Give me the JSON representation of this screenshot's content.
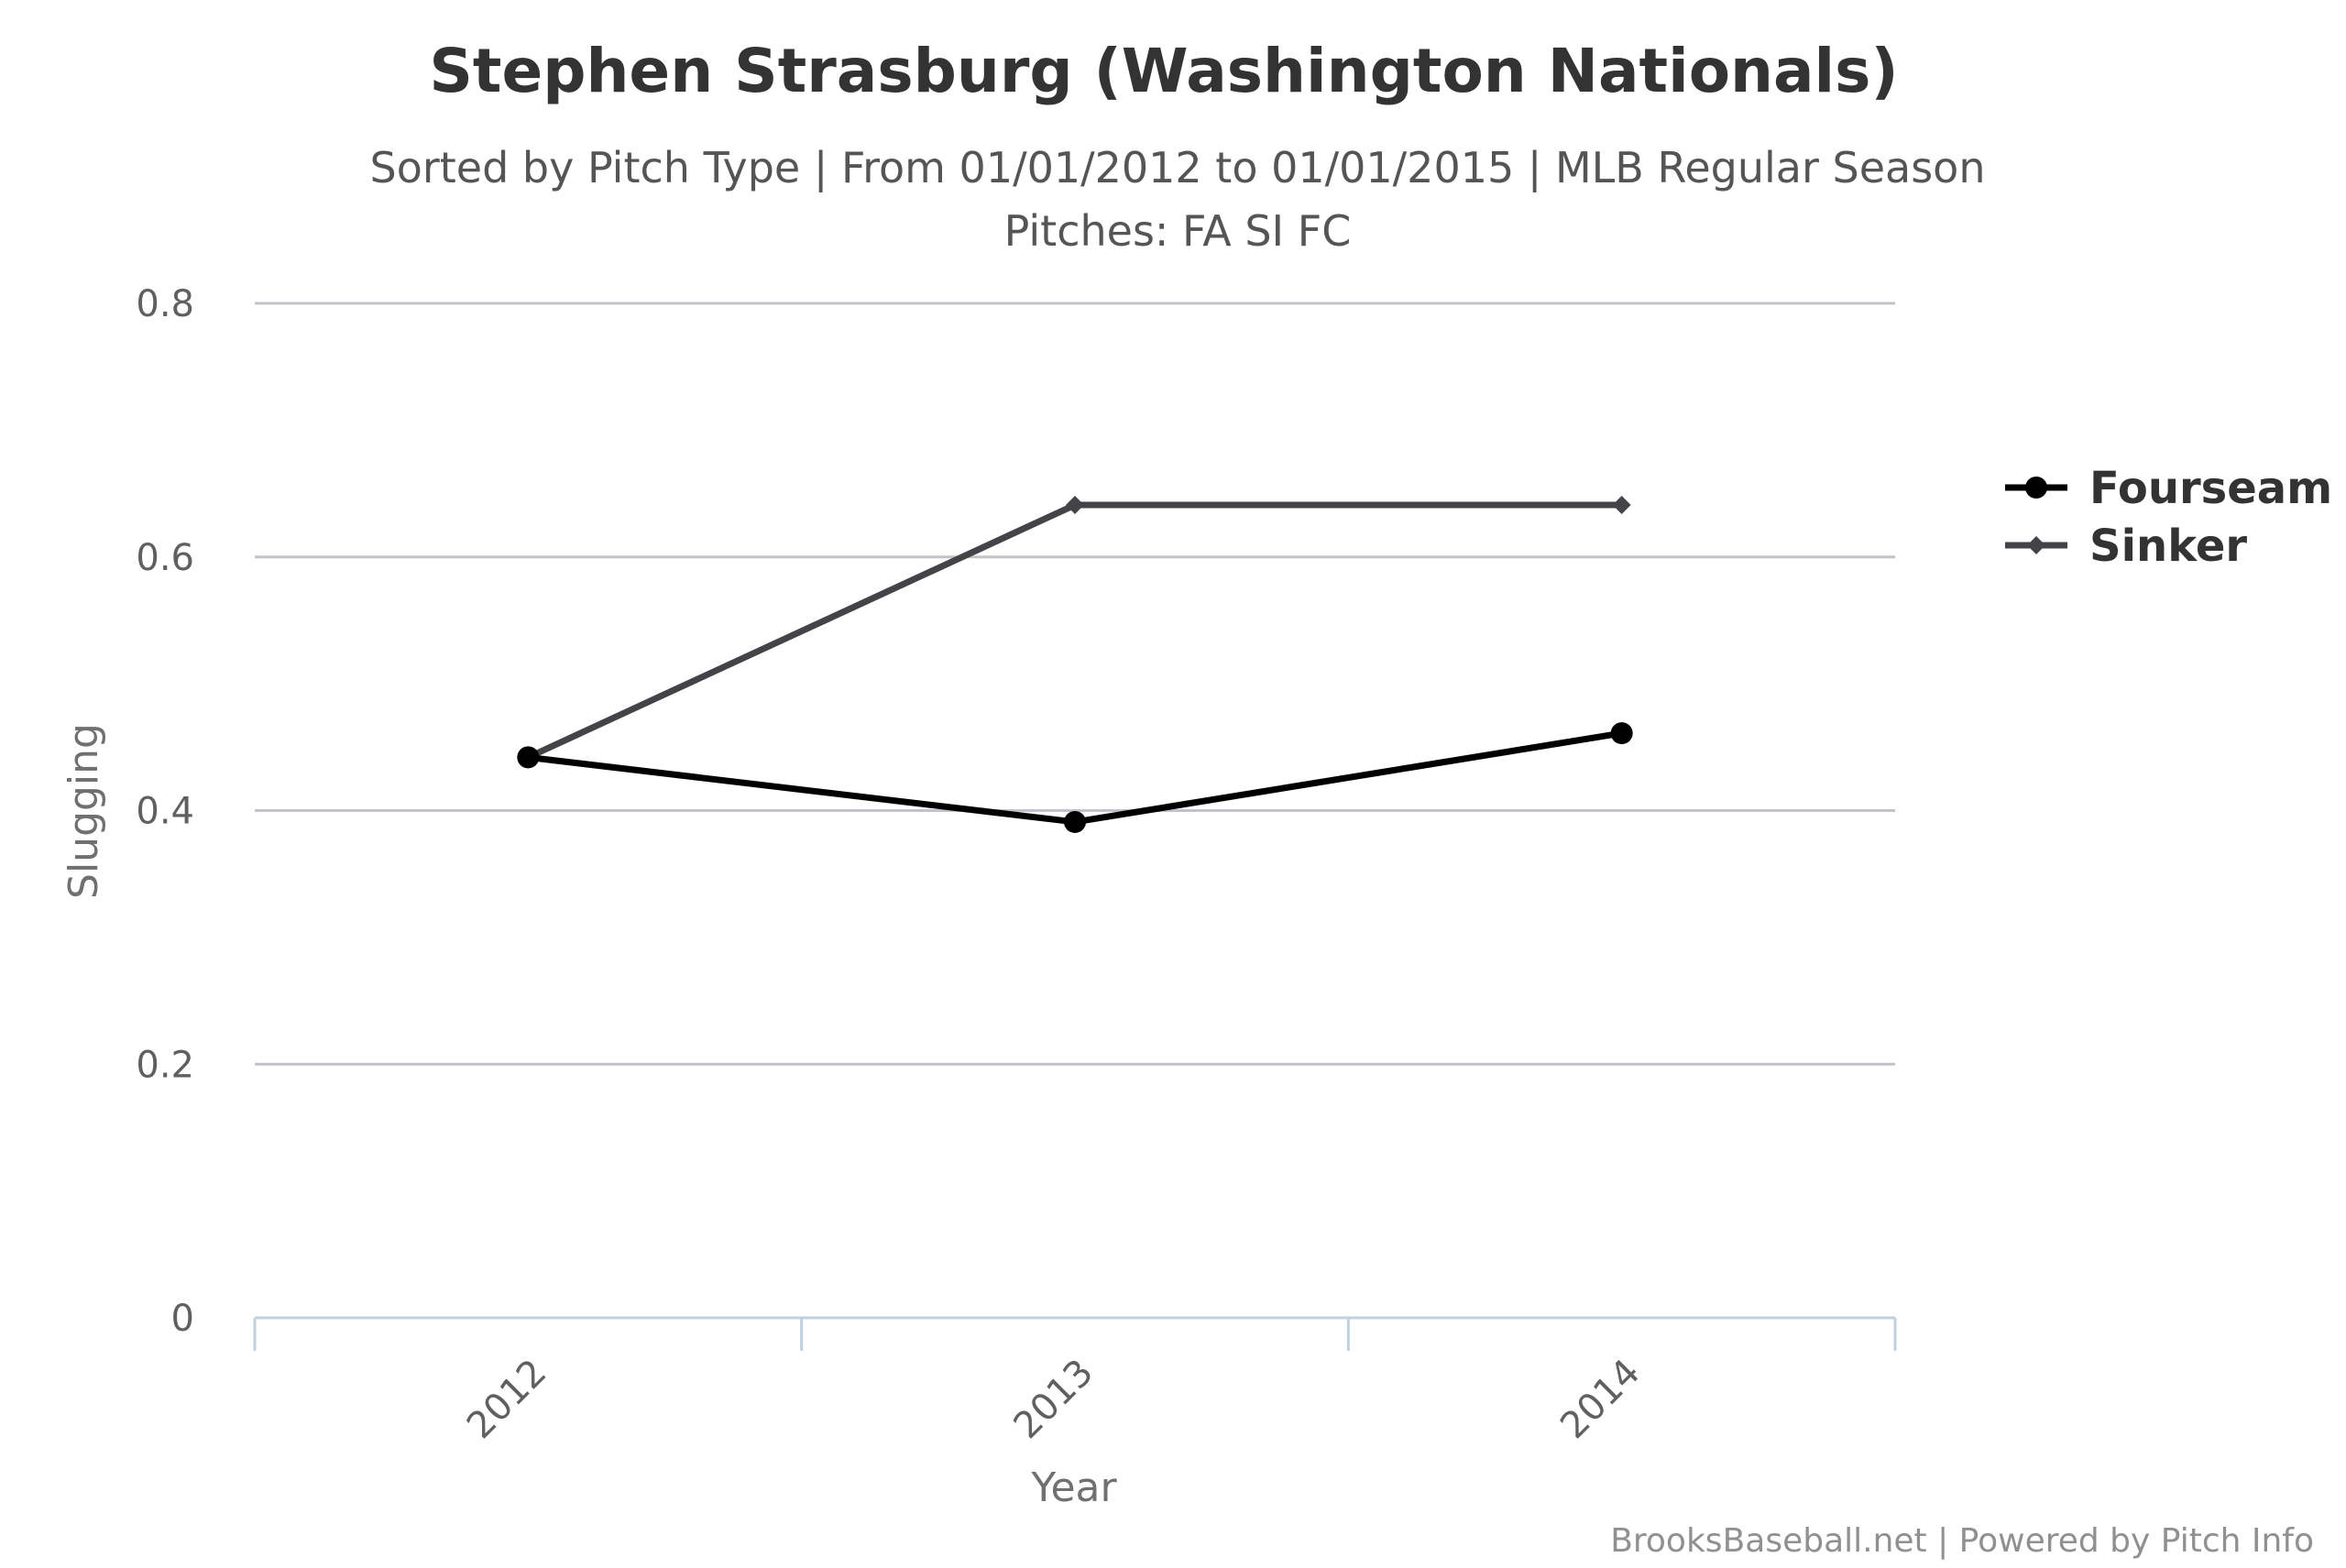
{
  "chart_data": {
    "type": "line",
    "title": "Stephen Strasburg (Washington Nationals)",
    "subtitle_line1": "Sorted by Pitch Type | From 01/01/2012 to 01/01/2015 | MLB Regular Season",
    "subtitle_line2": "Pitches: FA SI FC",
    "xlabel": "Year",
    "ylabel": "Slugging",
    "categories": [
      "2012",
      "2013",
      "2014"
    ],
    "y_ticks": [
      "0",
      "0.2",
      "0.4",
      "0.6",
      "0.8"
    ],
    "ylim": [
      0,
      0.8
    ],
    "grid": true,
    "legend_position": "right",
    "series": [
      {
        "name": "Fourseam",
        "values": [
          0.442,
          0.391,
          0.461
        ],
        "color": "#000000",
        "marker": "circle"
      },
      {
        "name": "Sinker",
        "values": [
          0.442,
          0.641,
          0.641
        ],
        "color": "#434348",
        "marker": "diamond"
      }
    ],
    "credits": "BrooksBaseball.net | Powered by Pitch Info"
  }
}
